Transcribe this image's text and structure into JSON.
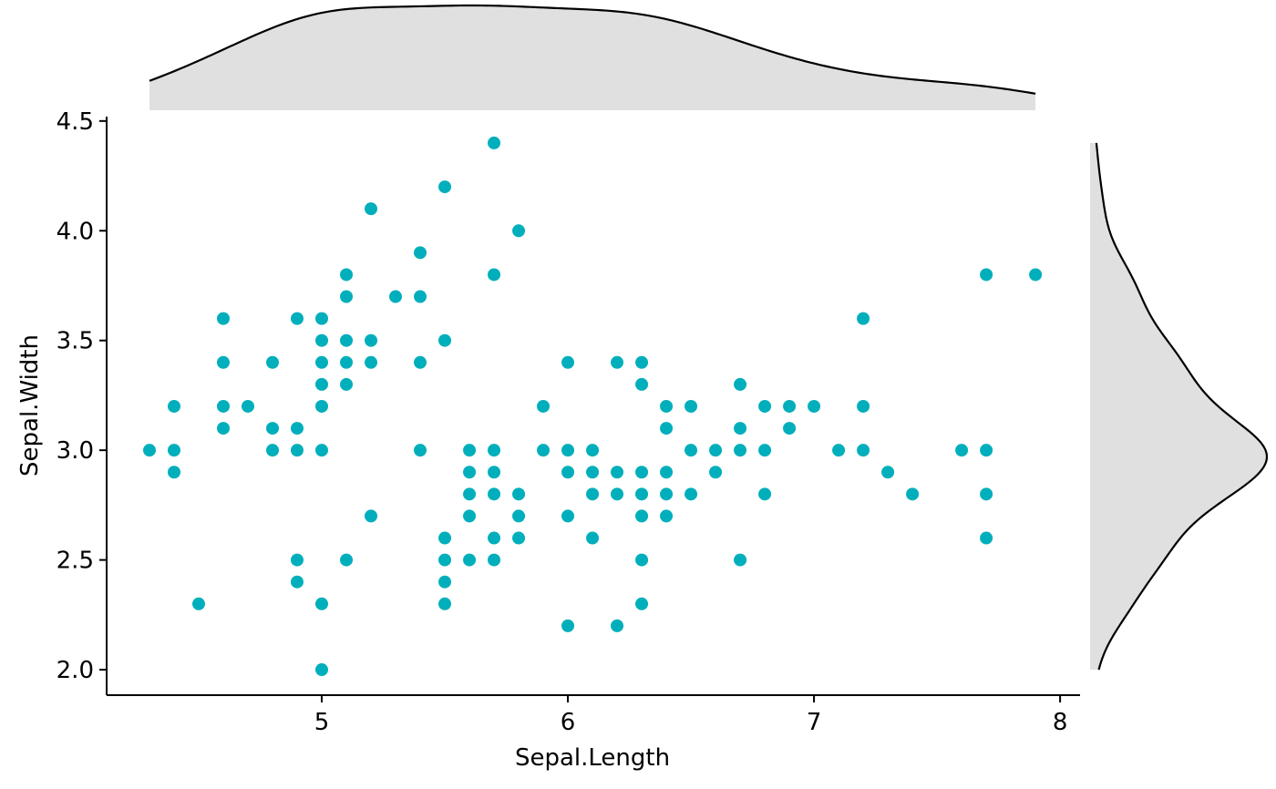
{
  "chart_data": {
    "type": "scatter",
    "xlabel": "Sepal.Length",
    "ylabel": "Sepal.Width",
    "color": "#00AFBB",
    "x": [
      4.3,
      4.4,
      4.4,
      4.4,
      4.5,
      4.6,
      4.6,
      4.6,
      4.6,
      4.7,
      4.8,
      4.8,
      4.8,
      4.9,
      4.9,
      4.9,
      4.9,
      4.9,
      5.0,
      5.0,
      5.0,
      5.0,
      5.0,
      5.0,
      5.0,
      5.0,
      5.1,
      5.1,
      5.1,
      5.1,
      5.1,
      5.1,
      5.2,
      5.2,
      5.2,
      5.2,
      5.3,
      5.4,
      5.4,
      5.4,
      5.4,
      5.5,
      5.5,
      5.5,
      5.5,
      5.5,
      5.5,
      5.6,
      5.6,
      5.6,
      5.6,
      5.6,
      5.7,
      5.7,
      5.7,
      5.7,
      5.7,
      5.7,
      5.7,
      5.8,
      5.8,
      5.8,
      5.8,
      5.9,
      5.9,
      6.0,
      6.0,
      6.0,
      6.0,
      6.0,
      6.1,
      6.1,
      6.1,
      6.1,
      6.2,
      6.2,
      6.2,
      6.2,
      6.3,
      6.3,
      6.3,
      6.3,
      6.3,
      6.3,
      6.3,
      6.4,
      6.4,
      6.4,
      6.4,
      6.4,
      6.5,
      6.5,
      6.5,
      6.6,
      6.6,
      6.7,
      6.7,
      6.7,
      6.7,
      6.8,
      6.8,
      6.8,
      6.9,
      6.9,
      7.0,
      7.1,
      7.2,
      7.2,
      7.2,
      7.3,
      7.4,
      7.6,
      7.7,
      7.7,
      7.7,
      7.7,
      7.9
    ],
    "values": [
      3.0,
      3.2,
      3.0,
      2.9,
      2.3,
      3.6,
      3.4,
      3.2,
      3.1,
      3.2,
      3.4,
      3.1,
      3.0,
      3.6,
      3.1,
      3.0,
      2.5,
      2.4,
      3.6,
      3.5,
      3.4,
      3.3,
      3.2,
      3.0,
      2.3,
      2.0,
      3.8,
      3.7,
      3.5,
      3.4,
      3.3,
      2.5,
      4.1,
      3.5,
      3.4,
      2.7,
      3.7,
      3.9,
      3.7,
      3.4,
      3.0,
      4.2,
      3.5,
      2.6,
      2.5,
      2.4,
      2.3,
      3.0,
      2.9,
      2.8,
      2.7,
      2.5,
      4.4,
      3.8,
      3.0,
      2.9,
      2.8,
      2.6,
      2.5,
      4.0,
      2.8,
      2.7,
      2.6,
      3.2,
      3.0,
      3.4,
      3.0,
      2.9,
      2.7,
      2.2,
      3.0,
      2.9,
      2.8,
      2.6,
      3.4,
      2.9,
      2.8,
      2.2,
      3.4,
      3.3,
      2.9,
      2.8,
      2.7,
      2.5,
      2.3,
      3.2,
      3.1,
      2.9,
      2.8,
      2.7,
      3.2,
      3.0,
      2.8,
      3.0,
      2.9,
      3.3,
      3.1,
      3.0,
      2.5,
      3.2,
      3.0,
      2.8,
      3.2,
      3.1,
      3.2,
      3.0,
      3.6,
      3.2,
      3.0,
      2.9,
      2.8,
      3.0,
      3.8,
      3.0,
      2.8,
      2.6,
      3.8
    ],
    "xlim": [
      4.126,
      8.081
    ],
    "ylim": [
      1.884,
      4.52
    ],
    "xticks": [
      5,
      6,
      7,
      8
    ],
    "yticks": [
      {
        "value": 2,
        "label": "2.0"
      },
      2.5,
      {
        "value": 3,
        "label": "3.0"
      },
      3.5,
      {
        "value": 4,
        "label": "4.0"
      },
      4.5
    ],
    "marginal_density": true
  }
}
